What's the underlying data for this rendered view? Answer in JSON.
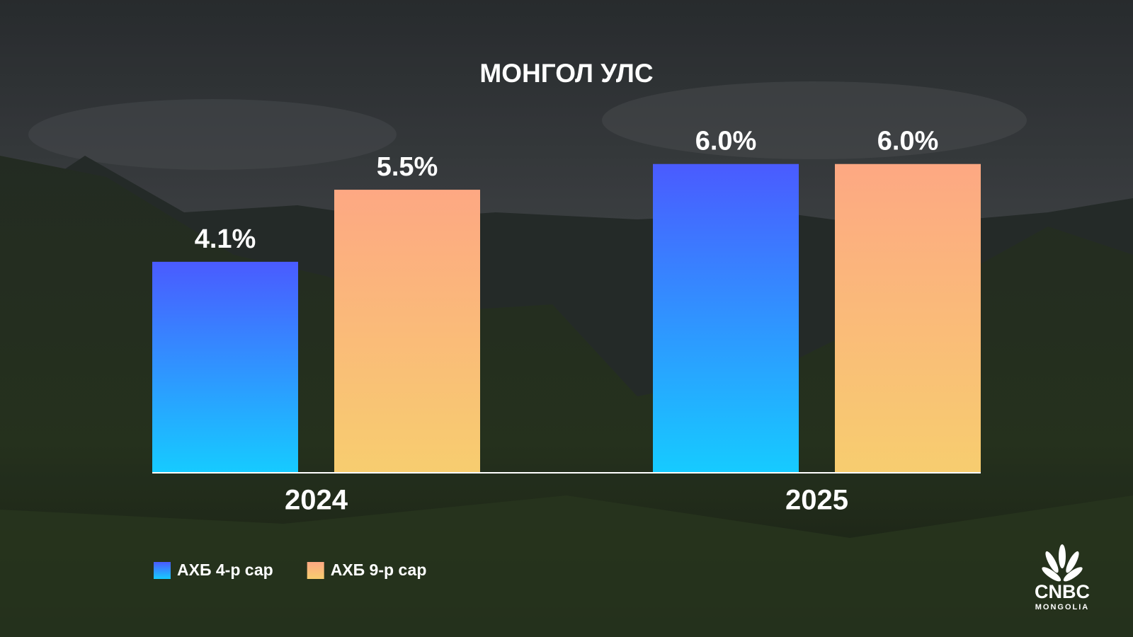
{
  "chart_data": {
    "type": "bar",
    "title": "МОНГОЛ УЛС",
    "categories": [
      "2024",
      "2025"
    ],
    "series": [
      {
        "name": "АХБ 4-р сар",
        "color": [
          "#4a5bff",
          "#16cbff"
        ],
        "values": [
          4.1,
          6.0
        ],
        "value_labels": [
          "4.1%",
          "6.0%"
        ]
      },
      {
        "name": "АХБ 9-р сар",
        "color": [
          "#fda883",
          "#f7cd6f"
        ],
        "values": [
          5.5,
          6.0
        ],
        "value_labels": [
          "5.5%",
          "6.0%"
        ]
      }
    ],
    "ylim": [
      0,
      7
    ],
    "grid": false,
    "legend": "bottom-left"
  },
  "logo": {
    "name": "CNBC",
    "sub": "MONGOLIA"
  }
}
